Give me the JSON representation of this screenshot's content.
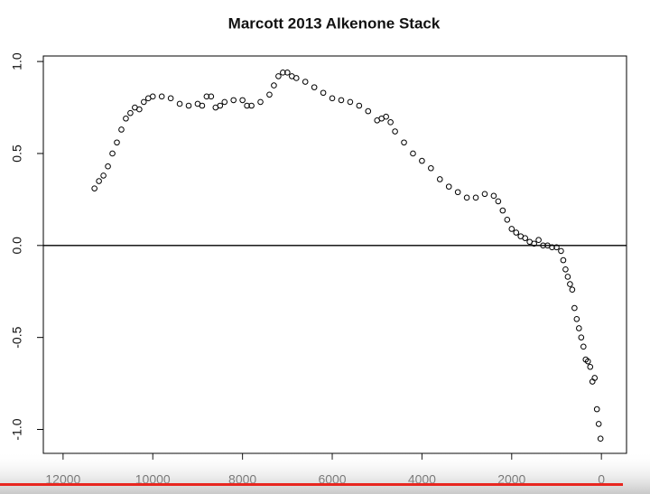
{
  "chart_data": {
    "type": "scatter",
    "title": "Marcott 2013 Alkenone Stack",
    "x": [
      11300,
      11200,
      11100,
      11000,
      10900,
      10800,
      10700,
      10600,
      10500,
      10400,
      10300,
      10200,
      10100,
      10000,
      9800,
      9600,
      9400,
      9200,
      9000,
      8900,
      8800,
      8700,
      8600,
      8500,
      8400,
      8200,
      8000,
      7900,
      7800,
      7600,
      7400,
      7300,
      7200,
      7100,
      7000,
      6900,
      6800,
      6600,
      6400,
      6200,
      6000,
      5800,
      5600,
      5400,
      5200,
      5000,
      4900,
      4800,
      4700,
      4600,
      4400,
      4200,
      4000,
      3800,
      3600,
      3400,
      3200,
      3000,
      2800,
      2600,
      2400,
      2300,
      2200,
      2100,
      2000,
      1900,
      1800,
      1700,
      1600,
      1500,
      1400,
      1300,
      1200,
      1100,
      1000,
      900,
      850,
      800,
      750,
      700,
      650,
      600,
      550,
      500,
      450,
      400,
      350,
      300,
      250,
      200,
      150,
      100,
      60,
      20
    ],
    "series": [
      {
        "color": "#000000",
        "values": [
          0.31,
          0.35,
          0.38,
          0.43,
          0.5,
          0.56,
          0.63,
          0.69,
          0.72,
          0.75,
          0.74,
          0.78,
          0.8,
          0.81,
          0.81,
          0.8,
          0.77,
          0.76,
          0.77,
          0.76,
          0.81,
          0.81,
          0.75,
          0.76,
          0.78,
          0.79,
          0.79,
          0.76,
          0.76,
          0.78,
          0.82,
          0.87,
          0.92,
          0.94,
          0.94,
          0.92,
          0.91,
          0.89,
          0.86,
          0.83,
          0.8,
          0.79,
          0.78,
          0.76,
          0.73,
          0.68,
          0.69,
          0.7,
          0.67,
          0.62,
          0.56,
          0.5,
          0.46,
          0.42,
          0.36,
          0.32,
          0.29,
          0.26,
          0.26,
          0.28,
          0.27,
          0.24,
          0.19,
          0.14,
          0.09,
          0.07,
          0.05,
          0.04,
          0.02,
          0.01,
          0.03,
          0.0,
          0.0,
          -0.01,
          -0.01,
          -0.03,
          -0.08,
          -0.13,
          -0.17,
          -0.21,
          -0.24,
          -0.34,
          -0.4,
          -0.45,
          -0.5,
          -0.55,
          -0.62,
          -0.63,
          -0.66,
          -0.74,
          -0.72,
          -0.89,
          -0.97,
          -1.05
        ]
      }
    ],
    "xlim": [
      12440,
      -560
    ],
    "ylim": [
      -1.13,
      1.03
    ],
    "xticks": [
      12000,
      10000,
      8000,
      6000,
      4000,
      2000,
      0
    ],
    "yticks": [
      {
        "value": -1,
        "label": "-1.0"
      },
      -0.5,
      {
        "value": 0,
        "label": "0.0"
      },
      0.5,
      {
        "value": 1,
        "label": "1.0"
      }
    ],
    "hline": 0
  }
}
